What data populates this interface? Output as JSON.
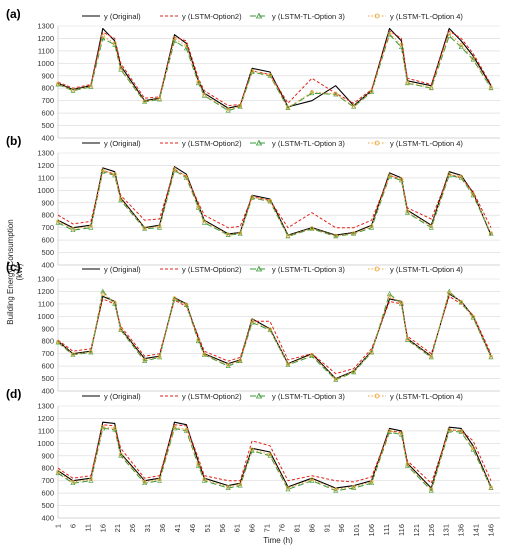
{
  "figure": {
    "ylabel_line1": "Building Energy Consumption",
    "ylabel_line2": "(kW)",
    "xlabel": "Time (h)"
  },
  "legend": [
    {
      "name": "y (Original)",
      "color": "#000000",
      "dash": "",
      "marker": "none"
    },
    {
      "name": "y (LSTM-Option2)",
      "color": "#e32119",
      "dash": "3,2",
      "marker": "none"
    },
    {
      "name": "y (LSTM-TL-Option 3)",
      "color": "#3a9a3a",
      "dash": "6,3",
      "marker": "triangle"
    },
    {
      "name": "y (LSTM-TL-Option 4)",
      "color": "#f0a030",
      "dash": "1.5,2",
      "marker": "circle"
    }
  ],
  "chart_data": [
    {
      "panel": "(a)",
      "type": "line",
      "ylim": [
        400,
        1300
      ],
      "yticks": [
        400,
        500,
        600,
        700,
        800,
        900,
        1000,
        1100,
        1200,
        1300
      ],
      "xlim": [
        1,
        149
      ],
      "grid": true,
      "legend_position": "top",
      "series": [
        {
          "name": "y (Original)",
          "x": [
            1,
            6,
            12,
            16,
            20,
            22,
            30,
            35,
            40,
            44,
            48,
            50,
            58,
            62,
            66,
            72,
            78,
            86,
            94,
            100,
            106,
            112,
            116,
            118,
            126,
            132,
            136,
            140,
            146
          ],
          "y": [
            840,
            790,
            820,
            1280,
            1180,
            980,
            700,
            720,
            1230,
            1160,
            860,
            760,
            640,
            660,
            960,
            930,
            650,
            700,
            820,
            660,
            780,
            1280,
            1180,
            860,
            820,
            1280,
            1180,
            1060,
            820
          ]
        },
        {
          "name": "y (LSTM-Option2)",
          "x": [
            1,
            6,
            12,
            16,
            20,
            22,
            30,
            35,
            40,
            44,
            48,
            50,
            58,
            62,
            66,
            72,
            78,
            86,
            94,
            100,
            106,
            112,
            116,
            118,
            126,
            132,
            136,
            140,
            146
          ],
          "y": [
            850,
            800,
            830,
            1250,
            1200,
            1000,
            720,
            730,
            1210,
            1180,
            880,
            780,
            660,
            670,
            940,
            910,
            680,
            880,
            760,
            680,
            790,
            1260,
            1200,
            880,
            830,
            1260,
            1200,
            1080,
            830
          ]
        },
        {
          "name": "y (LSTM-TL-Option 3)",
          "x": [
            1,
            6,
            12,
            16,
            20,
            22,
            30,
            35,
            40,
            44,
            48,
            50,
            58,
            62,
            66,
            72,
            78,
            86,
            94,
            100,
            106,
            112,
            116,
            118,
            126,
            132,
            136,
            140,
            146
          ],
          "y": [
            830,
            780,
            810,
            1200,
            1150,
            950,
            690,
            710,
            1180,
            1120,
            840,
            740,
            620,
            650,
            930,
            900,
            640,
            760,
            750,
            650,
            770,
            1230,
            1130,
            840,
            800,
            1220,
            1130,
            1030,
            800
          ]
        },
        {
          "name": "y (LSTM-TL-Option 4)",
          "x": [
            1,
            6,
            12,
            16,
            20,
            22,
            30,
            35,
            40,
            44,
            48,
            50,
            58,
            62,
            66,
            72,
            78,
            86,
            94,
            100,
            106,
            112,
            116,
            118,
            126,
            132,
            136,
            140,
            146
          ],
          "y": [
            835,
            785,
            815,
            1220,
            1160,
            960,
            695,
            715,
            1200,
            1140,
            850,
            745,
            630,
            655,
            940,
            905,
            645,
            770,
            755,
            655,
            775,
            1240,
            1150,
            845,
            805,
            1240,
            1150,
            1040,
            805
          ]
        }
      ]
    },
    {
      "panel": "(b)",
      "type": "line",
      "ylim": [
        400,
        1300
      ],
      "yticks": [
        400,
        500,
        600,
        700,
        800,
        900,
        1000,
        1100,
        1200,
        1300
      ],
      "xlim": [
        1,
        149
      ],
      "grid": true,
      "legend_position": "top",
      "series": [
        {
          "name": "y (Original)",
          "x": [
            1,
            6,
            12,
            16,
            20,
            22,
            30,
            35,
            40,
            44,
            48,
            50,
            58,
            62,
            66,
            72,
            78,
            86,
            94,
            100,
            106,
            112,
            116,
            118,
            126,
            132,
            136,
            140,
            146
          ],
          "y": [
            760,
            700,
            720,
            1180,
            1150,
            940,
            700,
            720,
            1190,
            1130,
            880,
            760,
            650,
            660,
            960,
            930,
            640,
            700,
            640,
            660,
            720,
            1140,
            1100,
            840,
            720,
            1150,
            1120,
            980,
            640
          ]
        },
        {
          "name": "y (LSTM-Option2)",
          "x": [
            1,
            6,
            12,
            16,
            20,
            22,
            30,
            35,
            40,
            44,
            48,
            50,
            58,
            62,
            66,
            72,
            78,
            86,
            94,
            100,
            106,
            112,
            116,
            118,
            126,
            132,
            136,
            140,
            146
          ],
          "y": [
            800,
            730,
            750,
            1160,
            1130,
            960,
            760,
            770,
            1170,
            1110,
            900,
            800,
            700,
            710,
            950,
            920,
            700,
            820,
            700,
            700,
            760,
            1120,
            1090,
            860,
            770,
            1130,
            1100,
            990,
            700
          ]
        },
        {
          "name": "y (LSTM-TL-Option 3)",
          "x": [
            1,
            6,
            12,
            16,
            20,
            22,
            30,
            35,
            40,
            44,
            48,
            50,
            58,
            62,
            66,
            72,
            78,
            86,
            94,
            100,
            106,
            112,
            116,
            118,
            126,
            132,
            136,
            140,
            146
          ],
          "y": [
            740,
            680,
            700,
            1150,
            1120,
            920,
            690,
            700,
            1160,
            1100,
            860,
            740,
            640,
            650,
            940,
            910,
            630,
            690,
            630,
            650,
            700,
            1110,
            1080,
            820,
            700,
            1120,
            1100,
            960,
            650
          ]
        },
        {
          "name": "y (LSTM-TL-Option 4)",
          "x": [
            1,
            6,
            12,
            16,
            20,
            22,
            30,
            35,
            40,
            44,
            48,
            50,
            58,
            62,
            66,
            72,
            78,
            86,
            94,
            100,
            106,
            112,
            116,
            118,
            126,
            132,
            136,
            140,
            146
          ],
          "y": [
            750,
            690,
            710,
            1160,
            1130,
            930,
            695,
            710,
            1170,
            1110,
            870,
            750,
            645,
            655,
            945,
            915,
            635,
            695,
            635,
            655,
            710,
            1120,
            1090,
            830,
            710,
            1130,
            1110,
            970,
            655
          ]
        }
      ]
    },
    {
      "panel": "(c)",
      "type": "line",
      "ylim": [
        400,
        1300
      ],
      "yticks": [
        400,
        500,
        600,
        700,
        800,
        900,
        1000,
        1100,
        1200,
        1300
      ],
      "xlim": [
        1,
        149
      ],
      "grid": true,
      "legend_position": "top",
      "series": [
        {
          "name": "y (Original)",
          "x": [
            1,
            6,
            12,
            16,
            20,
            22,
            30,
            35,
            40,
            44,
            48,
            50,
            58,
            62,
            66,
            72,
            78,
            86,
            94,
            100,
            106,
            112,
            116,
            118,
            126,
            132,
            136,
            140,
            146
          ],
          "y": [
            800,
            700,
            720,
            1160,
            1120,
            900,
            660,
            680,
            1150,
            1100,
            820,
            700,
            620,
            650,
            980,
            900,
            620,
            700,
            500,
            560,
            720,
            1140,
            1120,
            820,
            680,
            1180,
            1120,
            1000,
            680
          ]
        },
        {
          "name": "y (LSTM-Option2)",
          "x": [
            1,
            6,
            12,
            16,
            20,
            22,
            30,
            35,
            40,
            44,
            48,
            50,
            58,
            62,
            66,
            72,
            78,
            86,
            94,
            100,
            106,
            112,
            116,
            118,
            126,
            132,
            136,
            140,
            146
          ],
          "y": [
            810,
            720,
            740,
            1140,
            1100,
            920,
            680,
            700,
            1130,
            1080,
            840,
            720,
            640,
            670,
            960,
            960,
            650,
            700,
            540,
            580,
            740,
            1120,
            1100,
            840,
            700,
            1160,
            1100,
            1010,
            700
          ]
        },
        {
          "name": "y (LSTM-TL-Option 3)",
          "x": [
            1,
            6,
            12,
            16,
            20,
            22,
            30,
            35,
            40,
            44,
            48,
            50,
            58,
            62,
            66,
            72,
            78,
            86,
            94,
            100,
            106,
            112,
            116,
            118,
            126,
            132,
            136,
            140,
            146
          ],
          "y": [
            790,
            690,
            710,
            1200,
            1100,
            890,
            640,
            670,
            1140,
            1090,
            800,
            690,
            600,
            640,
            950,
            890,
            610,
            680,
            490,
            550,
            710,
            1180,
            1100,
            810,
            670,
            1200,
            1110,
            990,
            670
          ]
        },
        {
          "name": "y (LSTM-TL-Option 4)",
          "x": [
            1,
            6,
            12,
            16,
            20,
            22,
            30,
            35,
            40,
            44,
            48,
            50,
            58,
            62,
            66,
            72,
            78,
            86,
            94,
            100,
            106,
            112,
            116,
            118,
            126,
            132,
            136,
            140,
            146
          ],
          "y": [
            795,
            695,
            715,
            1180,
            1110,
            895,
            650,
            675,
            1145,
            1095,
            810,
            695,
            610,
            645,
            965,
            895,
            615,
            690,
            495,
            555,
            715,
            1160,
            1110,
            815,
            675,
            1190,
            1115,
            995,
            675
          ]
        }
      ]
    },
    {
      "panel": "(d)",
      "type": "line",
      "ylim": [
        400,
        1300
      ],
      "yticks": [
        400,
        500,
        600,
        700,
        800,
        900,
        1000,
        1100,
        1200,
        1300
      ],
      "xlim": [
        1,
        149
      ],
      "grid": true,
      "legend_position": "top",
      "series": [
        {
          "name": "y (Original)",
          "x": [
            1,
            6,
            12,
            16,
            20,
            22,
            30,
            35,
            40,
            44,
            48,
            50,
            58,
            62,
            66,
            72,
            78,
            86,
            94,
            100,
            106,
            112,
            116,
            118,
            126,
            132,
            136,
            140,
            146
          ],
          "y": [
            780,
            700,
            720,
            1170,
            1160,
            920,
            700,
            720,
            1170,
            1150,
            850,
            720,
            660,
            680,
            960,
            930,
            650,
            720,
            640,
            660,
            700,
            1120,
            1100,
            840,
            640,
            1130,
            1120,
            980,
            650
          ]
        },
        {
          "name": "y (LSTM-Option2)",
          "x": [
            1,
            6,
            12,
            16,
            20,
            22,
            30,
            35,
            40,
            44,
            48,
            50,
            58,
            62,
            66,
            72,
            78,
            86,
            94,
            100,
            106,
            112,
            116,
            118,
            126,
            132,
            136,
            140,
            146
          ],
          "y": [
            800,
            720,
            740,
            1150,
            1140,
            960,
            720,
            740,
            1150,
            1140,
            880,
            740,
            700,
            700,
            1020,
            980,
            700,
            740,
            700,
            690,
            730,
            1100,
            1090,
            860,
            680,
            1110,
            1100,
            1020,
            700
          ]
        },
        {
          "name": "y (LSTM-TL-Option 3)",
          "x": [
            1,
            6,
            12,
            16,
            20,
            22,
            30,
            35,
            40,
            44,
            48,
            50,
            58,
            62,
            66,
            72,
            78,
            86,
            94,
            100,
            106,
            112,
            116,
            118,
            126,
            132,
            136,
            140,
            146
          ],
          "y": [
            760,
            680,
            700,
            1120,
            1110,
            900,
            680,
            700,
            1120,
            1100,
            820,
            700,
            640,
            660,
            940,
            900,
            630,
            700,
            620,
            640,
            680,
            1090,
            1070,
            820,
            620,
            1100,
            1090,
            950,
            640
          ]
        },
        {
          "name": "y (LSTM-TL-Option 4)",
          "x": [
            1,
            6,
            12,
            16,
            20,
            22,
            30,
            35,
            40,
            44,
            48,
            50,
            58,
            62,
            66,
            72,
            78,
            86,
            94,
            100,
            106,
            112,
            116,
            118,
            126,
            132,
            136,
            140,
            146
          ],
          "y": [
            770,
            690,
            710,
            1130,
            1120,
            910,
            690,
            710,
            1130,
            1110,
            830,
            710,
            650,
            670,
            950,
            910,
            640,
            710,
            630,
            650,
            690,
            1100,
            1080,
            830,
            630,
            1110,
            1100,
            960,
            645
          ]
        }
      ]
    }
  ],
  "x_ticks": [
    "1",
    "6",
    "11",
    "16",
    "21",
    "26",
    "31",
    "36",
    "41",
    "46",
    "51",
    "56",
    "61",
    "66",
    "71",
    "76",
    "81",
    "86",
    "91",
    "96",
    "101",
    "106",
    "111",
    "116",
    "121",
    "126",
    "131",
    "136",
    "141",
    "146"
  ]
}
